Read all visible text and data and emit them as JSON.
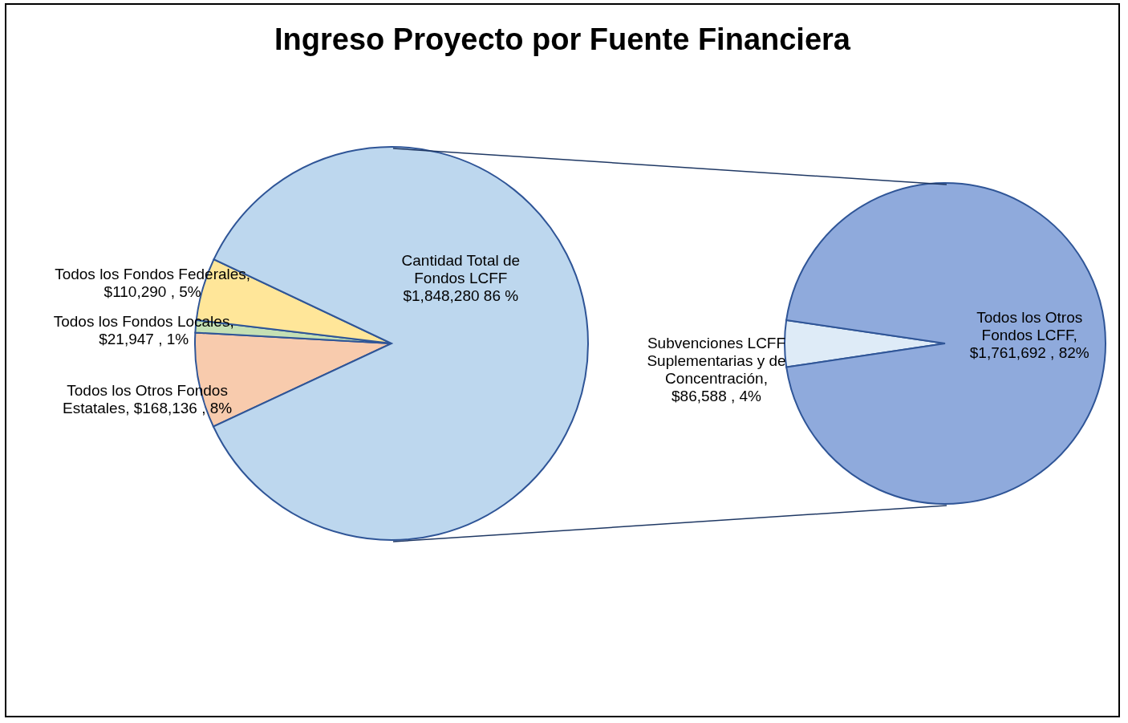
{
  "chart_data": [
    {
      "type": "pie",
      "title": "Ingreso Proyecto por Fuente Financiera",
      "categories": [
        "Todos los Otros Fondos Estatales",
        "Todos los Fondos Locales",
        "Todos los Fondos Federales",
        "Cantidad Total de Fondos LCFF"
      ],
      "values": [
        168136,
        21947,
        110290,
        1848280
      ],
      "value_labels": [
        ", $168,136 , 8%",
        ", $21,947 , 1%",
        ", $110,290 , 5%",
        "$1,848,280 86 %"
      ],
      "colors": [
        "#f8cbad",
        "#c5e0b4",
        "#ffe699",
        "#bdd7ee"
      ]
    },
    {
      "type": "pie",
      "categories": [
        "Subvenciones LCFF Suplementarias y de Concentración",
        "Todos los Otros Fondos LCFF"
      ],
      "values": [
        86588,
        1761692
      ],
      "value_labels": [
        ", $86,588 , 4%",
        ", $1,761,692 , 82%"
      ],
      "colors": [
        "#deebf7",
        "#8faadc"
      ]
    }
  ]
}
